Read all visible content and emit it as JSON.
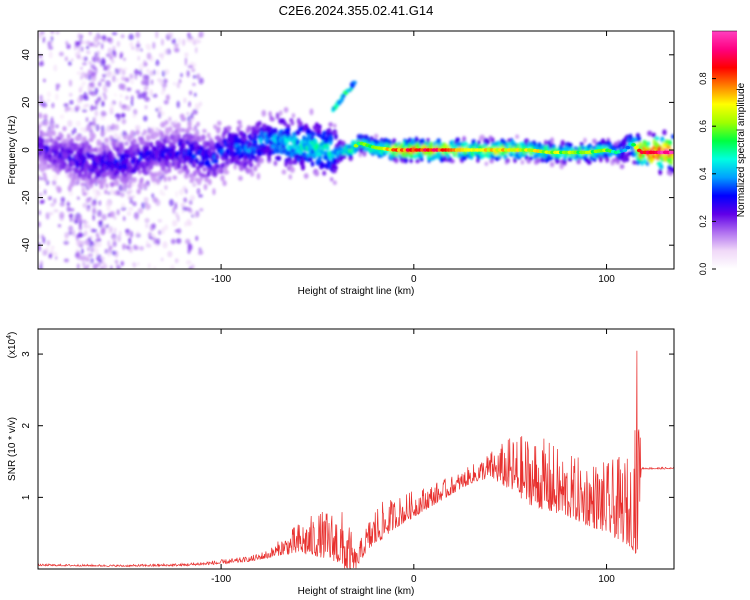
{
  "title": "C2E6.2024.355.02.41.G14",
  "chart_data": [
    {
      "type": "heatmap",
      "xlabel": "Height of straight line (km)",
      "ylabel": "Frequency (Hz)",
      "xlim": [
        -195,
        135
      ],
      "ylim": [
        -50,
        50
      ],
      "xticks": [
        -100,
        0,
        100
      ],
      "yticks": [
        -40,
        -20,
        0,
        20,
        40
      ],
      "colorbar": {
        "label": "Normalized spectral amplitude",
        "range": [
          0,
          1
        ],
        "ticks": [
          0.0,
          0.2,
          0.4,
          0.6,
          0.8
        ],
        "colors": [
          "#ffffff",
          "#f0d8f8",
          "#b070f0",
          "#6000e8",
          "#0000ff",
          "#00a0ff",
          "#00ffe0",
          "#00ff40",
          "#a0ff00",
          "#ffff00",
          "#ff8000",
          "#ff0000",
          "#ff0080",
          "#ff40c0"
        ]
      },
      "ridge": {
        "x": [
          -195,
          -180,
          -165,
          -150,
          -135,
          -120,
          -105,
          -95,
          -85,
          -78,
          -70,
          -60,
          -50,
          -40,
          -33,
          -28,
          -20,
          -10,
          0,
          10,
          20,
          30,
          40,
          50,
          60,
          70,
          80,
          90,
          100,
          105,
          110,
          113,
          118,
          125,
          135
        ],
        "y": [
          2,
          -3,
          -6,
          -5,
          -2,
          0,
          -4,
          2,
          0,
          5,
          4,
          2,
          1,
          -1,
          0,
          3,
          1,
          0,
          0,
          0,
          0,
          0,
          0,
          0,
          0,
          -1,
          -1,
          -1,
          0,
          -1,
          0,
          3,
          -1,
          -1,
          -1
        ],
        "amplitude": [
          0.25,
          0.28,
          0.3,
          0.32,
          0.3,
          0.32,
          0.35,
          0.35,
          0.38,
          0.4,
          0.45,
          0.5,
          0.5,
          0.52,
          0.55,
          0.55,
          0.6,
          0.75,
          0.85,
          0.85,
          0.75,
          0.7,
          0.72,
          0.7,
          0.65,
          0.65,
          0.6,
          0.6,
          0.6,
          0.45,
          0.4,
          0.45,
          0.85,
          0.95,
          0.95
        ]
      },
      "spur": {
        "x": [
          -42,
          -30
        ],
        "y": [
          17,
          29
        ]
      }
    },
    {
      "type": "line",
      "xlabel": "Height of straight line (km)",
      "ylabel": "SNR (10 * v/v)",
      "scale_label": "(x10",
      "scale_exp": "4",
      "scale_close": ")",
      "xlim": [
        -195,
        135
      ],
      "ylim": [
        0,
        3.35
      ],
      "xticks": [
        -100,
        0,
        100
      ],
      "yticks": [
        1,
        2,
        3
      ],
      "color": "#e8302e",
      "envelope": {
        "x": [
          -195,
          -150,
          -120,
          -100,
          -85,
          -75,
          -68,
          -60,
          -50,
          -40,
          -35,
          -30,
          -25,
          -20,
          -10,
          0,
          10,
          20,
          30,
          40,
          50,
          60,
          70,
          80,
          90,
          100,
          105,
          110,
          113,
          116,
          118,
          120,
          125,
          135
        ],
        "base": [
          0.05,
          0.04,
          0.05,
          0.08,
          0.12,
          0.18,
          0.25,
          0.3,
          0.3,
          0.25,
          0.1,
          0.05,
          0.3,
          0.45,
          0.65,
          0.8,
          0.95,
          1.1,
          1.25,
          1.35,
          1.25,
          1.1,
          1.0,
          0.9,
          0.8,
          0.7,
          0.65,
          0.6,
          0.55,
          0.8,
          1.4,
          1.4,
          1.4,
          1.4
        ],
        "amp": [
          0.02,
          0.02,
          0.03,
          0.05,
          0.06,
          0.1,
          0.2,
          0.35,
          0.5,
          0.6,
          0.7,
          0.2,
          0.3,
          0.45,
          0.35,
          0.3,
          0.25,
          0.2,
          0.2,
          0.3,
          0.6,
          0.8,
          0.8,
          0.7,
          0.75,
          0.8,
          0.9,
          1.0,
          1.0,
          2.5,
          0.02,
          0.02,
          0.02,
          0.02
        ]
      }
    }
  ]
}
